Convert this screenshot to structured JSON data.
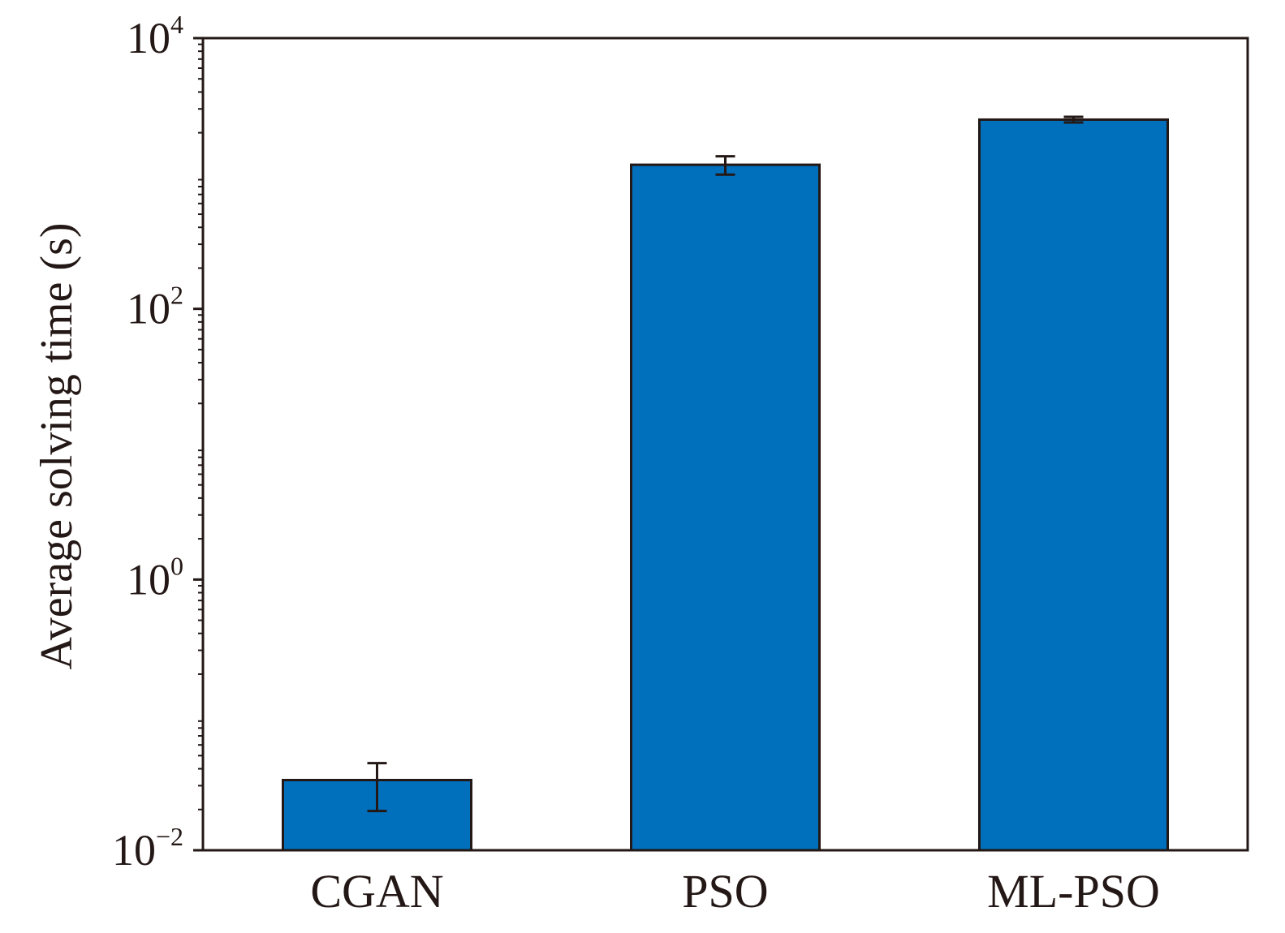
{
  "chart_data": {
    "type": "bar",
    "categories": [
      "CGAN",
      "PSO",
      "ML-PSO"
    ],
    "values": [
      0.033,
      1160,
      2500
    ],
    "error_low": [
      0.0195,
      980,
      2380
    ],
    "error_high": [
      0.044,
      1340,
      2620
    ],
    "ylabel": "Average solving time (s)",
    "xlabel": "",
    "title": "",
    "yscale": "log",
    "ylim": [
      0.01,
      10000
    ],
    "yticks": [
      {
        "value": 0.01,
        "base": "10",
        "exp": "−2"
      },
      {
        "value": 1,
        "base": "10",
        "exp": "0"
      },
      {
        "value": 100,
        "base": "10",
        "exp": "2"
      },
      {
        "value": 10000,
        "base": "10",
        "exp": "4"
      }
    ],
    "grid": false,
    "colors": {
      "bar": "#0070BD",
      "edge": "#231815",
      "axis": "#231815"
    }
  }
}
